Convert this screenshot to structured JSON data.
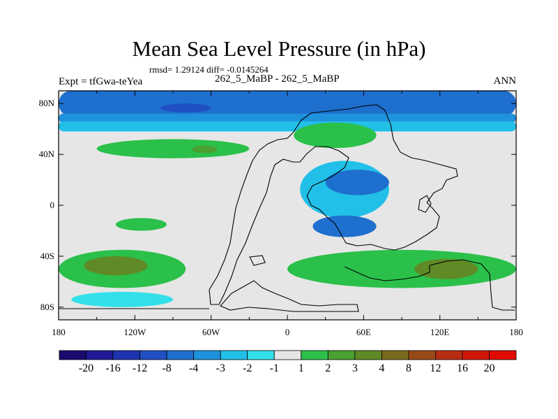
{
  "chart_data": {
    "type": "heatmap",
    "title": "Mean Sea Level Pressure (in hPa)",
    "stats_text": "rmsd= 1.29124 diff= -0.0145264",
    "experiment_text": "Expt = tfGwa-teYea",
    "comparison_text": "262_5_MaBP - 262_5_MaBP",
    "season": "ANN",
    "x_range": [
      -180,
      180
    ],
    "y_range": [
      -90,
      90
    ],
    "x_ticks": [
      {
        "value": -180,
        "label": "180"
      },
      {
        "value": -120,
        "label": "120W"
      },
      {
        "value": -60,
        "label": "60W"
      },
      {
        "value": 0,
        "label": "0"
      },
      {
        "value": 60,
        "label": "60E"
      },
      {
        "value": 120,
        "label": "120E"
      },
      {
        "value": 180,
        "label": "180"
      }
    ],
    "y_ticks": [
      {
        "value": 80,
        "label": "80N"
      },
      {
        "value": 40,
        "label": "40N"
      },
      {
        "value": 0,
        "label": "0"
      },
      {
        "value": -40,
        "label": "40S"
      },
      {
        "value": -80,
        "label": "80S"
      }
    ],
    "colorbar": {
      "levels": [
        "-20",
        "-16",
        "-12",
        "-8",
        "-4",
        "-3",
        "-2",
        "-1",
        "1",
        "2",
        "3",
        "4",
        "8",
        "12",
        "16",
        "20"
      ],
      "colors": [
        "#1a0a6e",
        "#1f1a96",
        "#1f33b0",
        "#1f4fc2",
        "#1e6fce",
        "#1e92dc",
        "#22c0e8",
        "#33e0ea",
        "#e6e6e6",
        "#2bc04a",
        "#4aa030",
        "#5f8a26",
        "#7a6a1e",
        "#9a4a18",
        "#b82c10",
        "#d01808",
        "#e20a00"
      ]
    },
    "regions": [
      {
        "name": "arctic-band-level-4",
        "level": "-4",
        "lon": [
          -180,
          180
        ],
        "lat": [
          70,
          90
        ]
      },
      {
        "name": "arctic-band-level-3",
        "level": "-3",
        "lon": [
          -180,
          180
        ],
        "lat": [
          65,
          72
        ]
      },
      {
        "name": "arctic-band-level-2",
        "level": "-2",
        "lon": [
          -180,
          180
        ],
        "lat": [
          58,
          66
        ]
      },
      {
        "name": "arctic-core-level-8",
        "level": "-8",
        "lon": [
          -100,
          -60
        ],
        "lat": [
          73,
          80
        ]
      },
      {
        "name": "north-pacific-high",
        "level": "2",
        "lon": [
          -150,
          -30
        ],
        "lat": [
          37,
          52
        ]
      },
      {
        "name": "north-pacific-high-core",
        "level": "3",
        "lon": [
          -75,
          -55
        ],
        "lat": [
          41,
          47
        ]
      },
      {
        "name": "central-asia-high",
        "level": "2",
        "lon": [
          5,
          70
        ],
        "lat": [
          45,
          65
        ]
      },
      {
        "name": "eurasia-low-north",
        "level": "-2",
        "lon": [
          10,
          80
        ],
        "lat": [
          -10,
          35
        ]
      },
      {
        "name": "eurasia-low-north-core",
        "level": "-4",
        "lon": [
          30,
          80
        ],
        "lat": [
          8,
          28
        ]
      },
      {
        "name": "eurasia-low-south-core",
        "level": "-4",
        "lon": [
          20,
          70
        ],
        "lat": [
          -25,
          -8
        ]
      },
      {
        "name": "tropical-pacific-high",
        "level": "2",
        "lon": [
          -135,
          -95
        ],
        "lat": [
          -20,
          -10
        ]
      },
      {
        "name": "south-pacific-high",
        "level": "2",
        "lon": [
          -180,
          -80
        ],
        "lat": [
          -65,
          -35
        ]
      },
      {
        "name": "south-pacific-high-core",
        "level": "4",
        "lon": [
          -160,
          -110
        ],
        "lat": [
          -55,
          -40
        ]
      },
      {
        "name": "south-indian-high",
        "level": "2",
        "lon": [
          0,
          180
        ],
        "lat": [
          -65,
          -35
        ]
      },
      {
        "name": "south-indian-high-core",
        "level": "4",
        "lon": [
          100,
          150
        ],
        "lat": [
          -58,
          -42
        ]
      },
      {
        "name": "antarctic-margin-low",
        "level": "-1",
        "lon": [
          -170,
          -90
        ],
        "lat": [
          -80,
          -68
        ]
      }
    ]
  }
}
